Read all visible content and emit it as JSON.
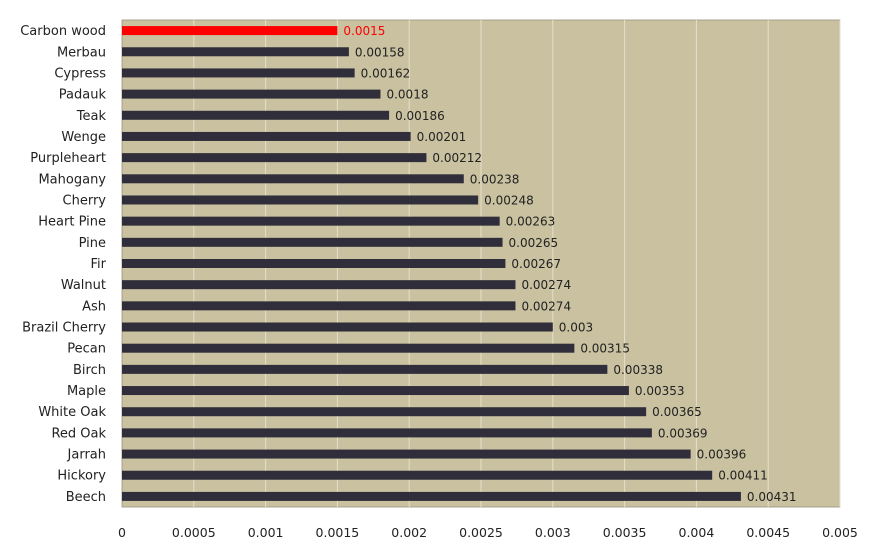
{
  "chart_data": {
    "type": "bar",
    "orientation": "horizontal",
    "categories": [
      "Carbon wood",
      "Merbau",
      "Cypress",
      "Padauk",
      "Teak",
      "Wenge",
      "Purpleheart",
      "Mahogany",
      "Cherry",
      "Heart Pine",
      "Pine",
      "Fir",
      "Walnut",
      "Ash",
      "Brazil Cherry",
      "Pecan",
      "Birch",
      "Maple",
      "White Oak",
      "Red Oak",
      "Jarrah",
      "Hickory",
      "Beech"
    ],
    "values": [
      0.0015,
      0.00158,
      0.00162,
      0.0018,
      0.00186,
      0.00201,
      0.00212,
      0.00238,
      0.00248,
      0.00263,
      0.00265,
      0.00267,
      0.00274,
      0.00274,
      0.003,
      0.00315,
      0.00338,
      0.00353,
      0.00365,
      0.00369,
      0.00396,
      0.00411,
      0.00431
    ],
    "data_labels": [
      "0.0015",
      "0.00158",
      "0.00162",
      "0.0018",
      "0.00186",
      "0.00201",
      "0.00212",
      "0.00238",
      "0.00248",
      "0.00263",
      "0.00265",
      "0.00267",
      "0.00274",
      "0.00274",
      "0.003",
      "0.00315",
      "0.00338",
      "0.00353",
      "0.00365",
      "0.00369",
      "0.00396",
      "0.00411",
      "0.00431"
    ],
    "xlim": [
      0,
      0.005
    ],
    "xticks": [
      0,
      0.0005,
      0.001,
      0.0015,
      0.002,
      0.0025,
      0.003,
      0.0035,
      0.004,
      0.0045,
      0.005
    ],
    "xtick_labels": [
      "0",
      "0.0005",
      "0.001",
      "0.0015",
      "0.002",
      "0.0025",
      "0.003",
      "0.0035",
      "0.004",
      "0.0045",
      "0.005"
    ],
    "highlight_index": 0,
    "grid": true,
    "title": "",
    "xlabel": "",
    "ylabel": "",
    "colors": {
      "bar": "#302e3a",
      "highlight": "#ff0000",
      "plot_background": "#c9c1a0",
      "gridline": "#e4dfca",
      "label": "#222222"
    }
  }
}
